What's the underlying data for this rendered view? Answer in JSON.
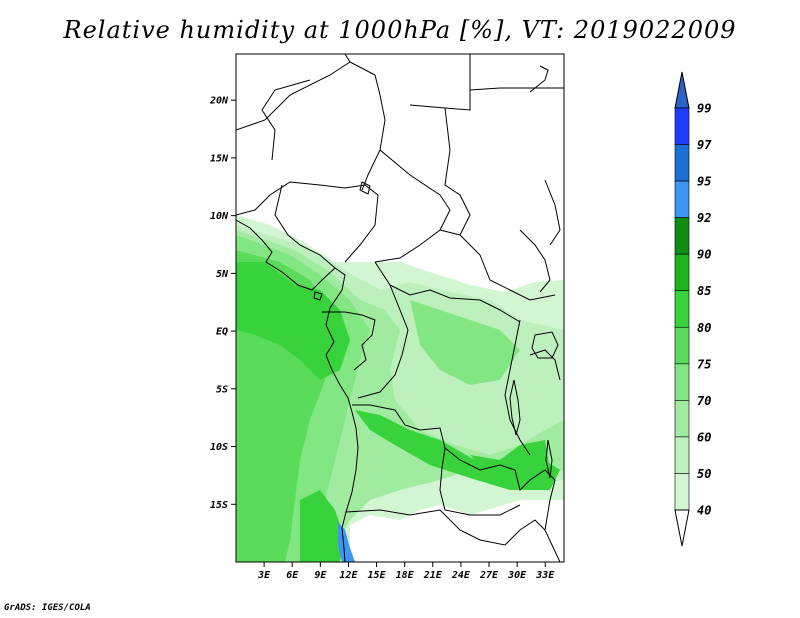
{
  "title": "Relative humidity at 1000hPa [%], VT: 2019022009",
  "credit": "GrADS: IGES/COLA",
  "map": {
    "lon_range": [
      0,
      35
    ],
    "lat_range": [
      -20,
      24
    ],
    "lat_ticks": [
      {
        "value": 20,
        "label": "20N"
      },
      {
        "value": 15,
        "label": "15N"
      },
      {
        "value": 10,
        "label": "10N"
      },
      {
        "value": 5,
        "label": "5N"
      },
      {
        "value": 0,
        "label": "EQ"
      },
      {
        "value": -5,
        "label": "5S"
      },
      {
        "value": -10,
        "label": "10S"
      },
      {
        "value": -15,
        "label": "15S"
      }
    ],
    "lon_ticks": [
      {
        "value": 3,
        "label": "3E"
      },
      {
        "value": 6,
        "label": "6E"
      },
      {
        "value": 9,
        "label": "9E"
      },
      {
        "value": 12,
        "label": "12E"
      },
      {
        "value": 15,
        "label": "15E"
      },
      {
        "value": 18,
        "label": "18E"
      },
      {
        "value": 21,
        "label": "21E"
      },
      {
        "value": 24,
        "label": "24E"
      },
      {
        "value": 27,
        "label": "27E"
      },
      {
        "value": 30,
        "label": "30E"
      },
      {
        "value": 33,
        "label": "33E"
      }
    ]
  },
  "colorbar": {
    "levels": [
      "99",
      "97",
      "95",
      "92",
      "90",
      "85",
      "80",
      "75",
      "70",
      "60",
      "50",
      "40"
    ],
    "colors": [
      "#1e3cff",
      "#1e6ed8",
      "#3c96f5",
      "#0f8c14",
      "#1eb41e",
      "#37d23c",
      "#5adc5a",
      "#82e682",
      "#a0eba0",
      "#bef0be",
      "#d2f5d2",
      "#f0fff0"
    ],
    "top_color": "#2a63c8",
    "bottom_color": "#ffffff"
  },
  "colors": {
    "ocean_moist": "#5adc5a",
    "dry_land": "#ffffff",
    "moist_land": "#a0eba0",
    "wettest": "#37d23c",
    "water_blue": "#3c96f5"
  }
}
